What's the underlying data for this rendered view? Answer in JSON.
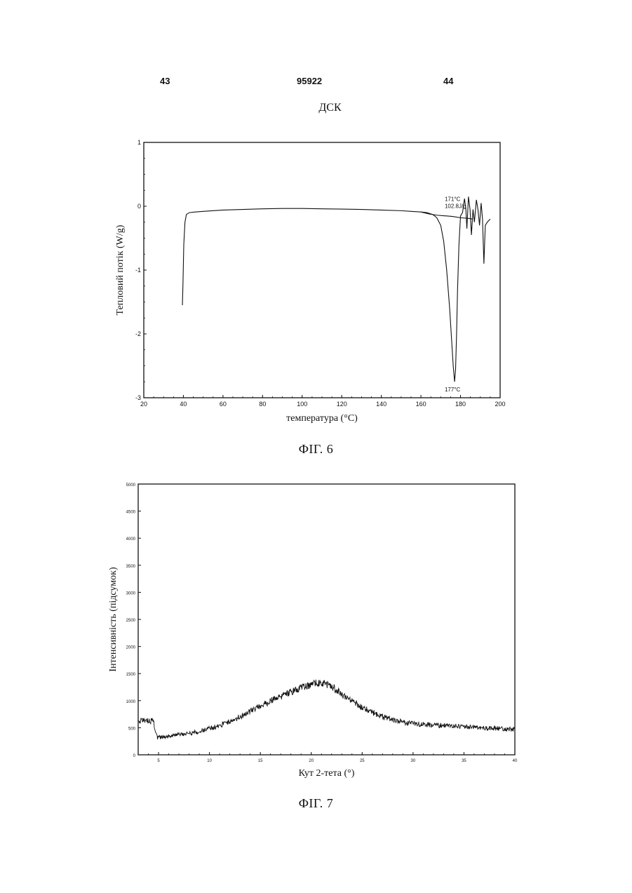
{
  "header": {
    "left_page": "43",
    "patent_number": "95922",
    "right_page": "44"
  },
  "figures": [
    {
      "caption": "ФІГ. 6"
    },
    {
      "caption": "ФІГ. 7"
    }
  ],
  "chart_data": [
    {
      "type": "line",
      "title": "ДСК",
      "xlabel": "температура (°C)",
      "ylabel": "Тепловий потік (W/g)",
      "xlim": [
        20,
        200
      ],
      "ylim": [
        -3,
        1
      ],
      "x_ticks": [
        20,
        40,
        60,
        80,
        100,
        120,
        140,
        160,
        180,
        200
      ],
      "x_tick_labels": [
        "20",
        "40",
        "60",
        "80",
        "100",
        "120",
        "140",
        "160",
        "180",
        "200"
      ],
      "y_ticks": [
        1,
        0,
        -1,
        -2,
        -3
      ],
      "y_tick_labels": [
        "1",
        "0",
        "-1",
        "-2",
        "-3"
      ],
      "grid": false,
      "annotations": [
        {
          "text": "171°C",
          "x": 172,
          "y": 0.08
        },
        {
          "text": "102.8J/g",
          "x": 172,
          "y": -0.03
        },
        {
          "text": "177°C",
          "x": 172,
          "y": -2.9
        }
      ],
      "series": [
        {
          "points": [
            [
              39.5,
              -1.55
            ],
            [
              39.8,
              -1.2
            ],
            [
              40.2,
              -0.6
            ],
            [
              40.8,
              -0.25
            ],
            [
              41.5,
              -0.13
            ],
            [
              43,
              -0.1
            ],
            [
              46,
              -0.09
            ],
            [
              50,
              -0.08
            ],
            [
              60,
              -0.06
            ],
            [
              70,
              -0.05
            ],
            [
              80,
              -0.04
            ],
            [
              90,
              -0.035
            ],
            [
              100,
              -0.035
            ],
            [
              110,
              -0.04
            ],
            [
              120,
              -0.045
            ],
            [
              130,
              -0.05
            ],
            [
              140,
              -0.06
            ],
            [
              150,
              -0.07
            ],
            [
              155,
              -0.08
            ],
            [
              160,
              -0.09
            ],
            [
              163,
              -0.1
            ],
            [
              166,
              -0.13
            ],
            [
              168,
              -0.18
            ],
            [
              170,
              -0.3
            ],
            [
              171.5,
              -0.55
            ],
            [
              173,
              -1.0
            ],
            [
              174.5,
              -1.6
            ],
            [
              175.5,
              -2.1
            ],
            [
              176.3,
              -2.5
            ],
            [
              177,
              -2.75
            ],
            [
              177.5,
              -2.55
            ],
            [
              178,
              -2.0
            ],
            [
              178.5,
              -1.3
            ],
            [
              179.2,
              -0.6
            ],
            [
              180,
              -0.15
            ],
            [
              181,
              -0.1
            ],
            [
              182,
              0.12
            ],
            [
              182.7,
              -0.05
            ],
            [
              183.2,
              -0.35
            ],
            [
              184,
              0.15
            ],
            [
              184.8,
              -0.05
            ],
            [
              185.5,
              -0.45
            ],
            [
              186.3,
              -0.05
            ],
            [
              187,
              -0.25
            ],
            [
              188,
              0.1
            ],
            [
              188.8,
              -0.05
            ],
            [
              189.6,
              -0.3
            ],
            [
              190.4,
              0.05
            ],
            [
              191.1,
              -0.2
            ],
            [
              191.8,
              -0.9
            ],
            [
              192.5,
              -0.3
            ],
            [
              193.5,
              -0.25
            ],
            [
              195,
              -0.2
            ]
          ]
        },
        {
          "points": [
            [
              160,
              -0.09
            ],
            [
              164,
              -0.12
            ],
            [
              168,
              -0.14
            ],
            [
              172,
              -0.15
            ],
            [
              176,
              -0.16
            ],
            [
              180,
              -0.18
            ],
            [
              184,
              -0.19
            ],
            [
              186,
              -0.2
            ]
          ]
        }
      ]
    },
    {
      "type": "line",
      "xlabel": "Кут 2-тета (°)",
      "ylabel": "Інтенсивність (підсумок)",
      "xlim": [
        3,
        40
      ],
      "ylim": [
        0,
        5000
      ],
      "x_ticks": [
        5,
        10,
        15,
        20,
        25,
        30,
        35,
        40
      ],
      "x_tick_labels": [
        "5",
        "10",
        "15",
        "20",
        "25",
        "30",
        "35",
        "40"
      ],
      "y_ticks": [
        0,
        500,
        1000,
        1500,
        2000,
        2500,
        3000,
        3500,
        4000,
        4500,
        5000
      ],
      "y_tick_labels": [
        "0",
        "500",
        "1000",
        "1500",
        "2000",
        "2500",
        "3000",
        "3500",
        "4000",
        "4500",
        "5000"
      ],
      "grid": false,
      "series": [
        {
          "points": [
            [
              3,
              620
            ],
            [
              3.5,
              630
            ],
            [
              4,
              625
            ],
            [
              4.5,
              620
            ],
            [
              4.7,
              450
            ],
            [
              4.9,
              320
            ],
            [
              5.5,
              330
            ],
            [
              7,
              370
            ],
            [
              9,
              430
            ],
            [
              11,
              540
            ],
            [
              13,
              700
            ],
            [
              15,
              900
            ],
            [
              17,
              1080
            ],
            [
              19,
              1230
            ],
            [
              20.5,
              1320
            ],
            [
              21,
              1330
            ],
            [
              22,
              1270
            ],
            [
              23,
              1120
            ],
            [
              25,
              870
            ],
            [
              27,
              700
            ],
            [
              29,
              600
            ],
            [
              31,
              560
            ],
            [
              33,
              540
            ],
            [
              35,
              520
            ],
            [
              37,
              500
            ],
            [
              39,
              480
            ],
            [
              40,
              470
            ]
          ]
        }
      ]
    }
  ]
}
